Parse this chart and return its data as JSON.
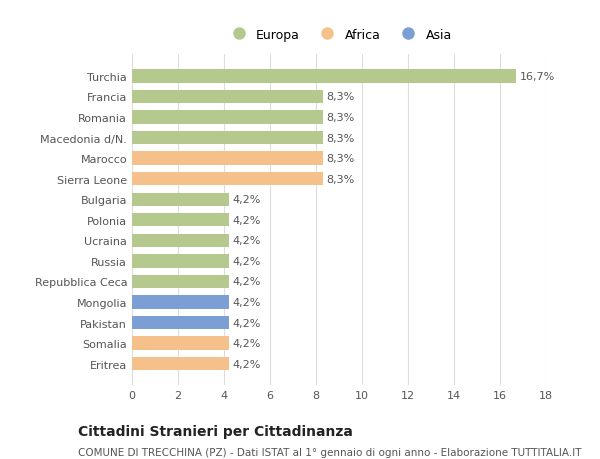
{
  "categories": [
    "Turchia",
    "Francia",
    "Romania",
    "Macedonia d/N.",
    "Marocco",
    "Sierra Leone",
    "Bulgaria",
    "Polonia",
    "Ucraina",
    "Russia",
    "Repubblica Ceca",
    "Mongolia",
    "Pakistan",
    "Somalia",
    "Eritrea"
  ],
  "values": [
    16.7,
    8.3,
    8.3,
    8.3,
    8.3,
    8.3,
    4.2,
    4.2,
    4.2,
    4.2,
    4.2,
    4.2,
    4.2,
    4.2,
    4.2
  ],
  "colors": [
    "#b5c98e",
    "#b5c98e",
    "#b5c98e",
    "#b5c98e",
    "#f5c08a",
    "#f5c08a",
    "#b5c98e",
    "#b5c98e",
    "#b5c98e",
    "#b5c98e",
    "#b5c98e",
    "#7b9fd4",
    "#7b9fd4",
    "#f5c08a",
    "#f5c08a"
  ],
  "labels": [
    "16,7%",
    "8,3%",
    "8,3%",
    "8,3%",
    "8,3%",
    "8,3%",
    "4,2%",
    "4,2%",
    "4,2%",
    "4,2%",
    "4,2%",
    "4,2%",
    "4,2%",
    "4,2%",
    "4,2%"
  ],
  "legend": [
    {
      "label": "Europa",
      "color": "#b5c98e"
    },
    {
      "label": "Africa",
      "color": "#f5c08a"
    },
    {
      "label": "Asia",
      "color": "#7b9fd4"
    }
  ],
  "xlim": [
    0,
    18
  ],
  "xticks": [
    0,
    2,
    4,
    6,
    8,
    10,
    12,
    14,
    16,
    18
  ],
  "title": "Cittadini Stranieri per Cittadinanza",
  "subtitle": "COMUNE DI TRECCHINA (PZ) - Dati ISTAT al 1° gennaio di ogni anno - Elaborazione TUTTITALIA.IT",
  "bar_height": 0.65,
  "label_fontsize": 8,
  "title_fontsize": 10,
  "subtitle_fontsize": 7.5,
  "ytick_fontsize": 8,
  "xtick_fontsize": 8,
  "grid_color": "#dddddd",
  "background_color": "#ffffff",
  "bar_label_color": "#555555"
}
